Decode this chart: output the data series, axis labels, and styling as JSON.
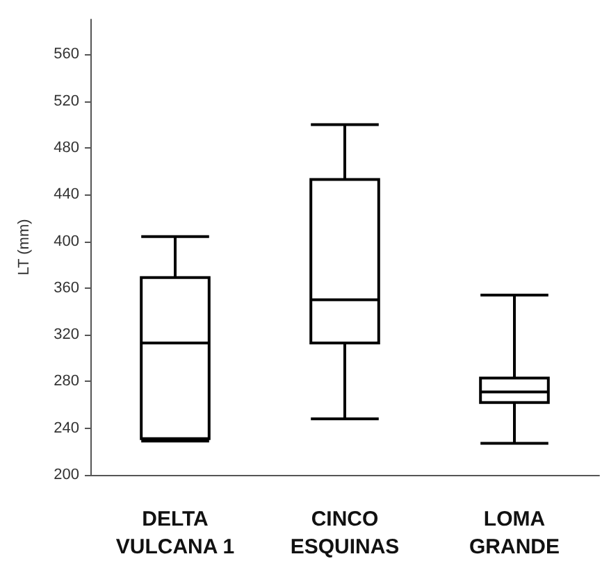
{
  "chart_data": {
    "type": "box",
    "ylabel": "LT (mm)",
    "categories": [
      "DELTA\nVULCANA 1",
      "CINCO\nESQUINAS",
      "LOMA\nGRANDE"
    ],
    "boxes": [
      {
        "low": 229,
        "q1": 231,
        "median": 313,
        "q3": 369,
        "high": 404
      },
      {
        "low": 248,
        "q1": 313,
        "median": 350,
        "q3": 453,
        "high": 500
      },
      {
        "low": 227,
        "q1": 262,
        "median": 271,
        "q3": 283,
        "high": 354
      }
    ],
    "color": "#000000",
    "ylim": [
      200,
      590
    ],
    "yticks": [
      200,
      240,
      280,
      320,
      360,
      400,
      440,
      480,
      520,
      560
    ],
    "grid": false
  }
}
